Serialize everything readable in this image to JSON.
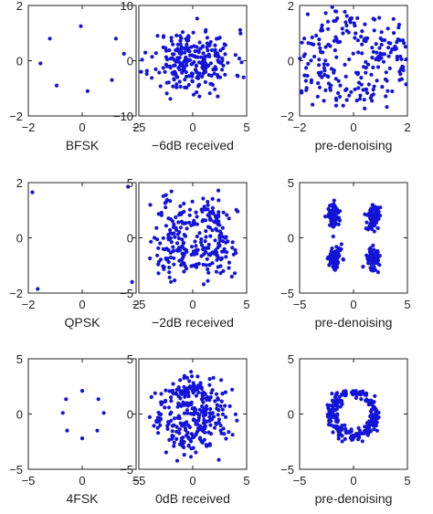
{
  "chart_data": [
    {
      "type": "scatter",
      "label": "BFSK",
      "xlim": [
        -2,
        2
      ],
      "ylim": [
        -2,
        2
      ],
      "xticks": [
        "-2",
        "0",
        "2"
      ],
      "yticks": [
        "-2",
        "0",
        "2"
      ],
      "points": [
        [
          -0.05,
          1.25
        ],
        [
          -1.2,
          0.8
        ],
        [
          1.25,
          0.8
        ],
        [
          -1.55,
          -0.1
        ],
        [
          1.55,
          0.25
        ],
        [
          -0.95,
          -0.9
        ],
        [
          1.1,
          -0.7
        ],
        [
          0.2,
          -1.1
        ]
      ]
    },
    {
      "type": "scatter",
      "label": "−6dB received",
      "xlim": [
        -5,
        5
      ],
      "ylim": [
        -10,
        10
      ],
      "xticks": [
        "-5",
        "0",
        "5"
      ],
      "yticks": [
        "-10",
        "0",
        "10"
      ],
      "n": 260,
      "seed": 11,
      "gen": "gauss",
      "sx": 1.9,
      "sy": 2.8
    },
    {
      "type": "scatter",
      "label": "pre-denoising",
      "xlim": [
        -2,
        2
      ],
      "ylim": [
        -2,
        2
      ],
      "xticks": [
        "-2",
        "0",
        "2"
      ],
      "yticks": [
        "-2",
        "0",
        "2"
      ],
      "n": 260,
      "seed": 23,
      "gen": "clusters",
      "spread": 0.55,
      "centers": [
        [
          -0.05,
          1.25
        ],
        [
          -1.2,
          0.8
        ],
        [
          1.25,
          0.8
        ],
        [
          -1.55,
          -0.1
        ],
        [
          1.55,
          0.25
        ],
        [
          -0.95,
          -0.9
        ],
        [
          1.1,
          -0.7
        ],
        [
          0.2,
          -1.1
        ]
      ]
    },
    {
      "type": "scatter",
      "label": "QPSK",
      "xlim": [
        -2,
        2
      ],
      "ylim": [
        -2,
        2
      ],
      "xticks": [
        "-2",
        "0",
        "2"
      ],
      "yticks": [
        "-2",
        "0",
        "2"
      ],
      "points": [
        [
          -1.85,
          1.65
        ],
        [
          1.7,
          1.85
        ],
        [
          -1.65,
          -1.85
        ],
        [
          1.85,
          -1.6
        ]
      ]
    },
    {
      "type": "scatter",
      "label": "−2dB received",
      "xlim": [
        -5,
        5
      ],
      "ylim": [
        -5,
        5
      ],
      "xticks": [
        "-5",
        "0",
        "5"
      ],
      "yticks": [
        "-5",
        "0",
        "5"
      ],
      "n": 270,
      "seed": 37,
      "gen": "clusters",
      "spread": 1.05,
      "centers": [
        [
          -1.8,
          1.7
        ],
        [
          1.8,
          1.7
        ],
        [
          -1.8,
          -1.7
        ],
        [
          1.8,
          -1.7
        ]
      ]
    },
    {
      "type": "scatter",
      "label": "pre-denoising",
      "xlim": [
        -5,
        5
      ],
      "ylim": [
        -5,
        5
      ],
      "xticks": [
        "-5",
        "0",
        "5"
      ],
      "yticks": [
        "-5",
        "0",
        "5"
      ],
      "n": 270,
      "seed": 41,
      "gen": "clusters",
      "spread": 0.32,
      "sxmul": 1.0,
      "symul": 1.9,
      "centers": [
        [
          -1.8,
          1.9
        ],
        [
          1.8,
          1.9
        ],
        [
          -1.8,
          -1.9
        ],
        [
          1.8,
          -1.9
        ]
      ]
    },
    {
      "type": "scatter",
      "label": "4FSK",
      "xlim": [
        -5,
        5
      ],
      "ylim": [
        -5,
        5
      ],
      "xticks": [
        "-5",
        "0",
        "5"
      ],
      "yticks": [
        "-5",
        "0",
        "5"
      ],
      "points": [
        [
          0,
          2.1
        ],
        [
          -1.5,
          1.35
        ],
        [
          1.5,
          1.35
        ],
        [
          -1.8,
          0.1
        ],
        [
          2.0,
          0.1
        ],
        [
          -1.4,
          -1.5
        ],
        [
          1.4,
          -1.5
        ],
        [
          0,
          -2.2
        ]
      ]
    },
    {
      "type": "scatter",
      "label": "0dB received",
      "xlim": [
        -5,
        5
      ],
      "ylim": [
        -5,
        5
      ],
      "xticks": [
        "-5",
        "0",
        "5"
      ],
      "yticks": [
        "-5",
        "0",
        "5"
      ],
      "n": 300,
      "seed": 53,
      "gen": "ring",
      "r": 2.2,
      "rspread": 0.95
    },
    {
      "type": "scatter",
      "label": "pre-denoising",
      "xlim": [
        -5,
        5
      ],
      "ylim": [
        -5,
        5
      ],
      "xticks": [
        "-5",
        "0",
        "5"
      ],
      "yticks": [
        "-5",
        "0",
        "5"
      ],
      "n": 240,
      "seed": 61,
      "gen": "ring",
      "r": 2.0,
      "rspread": 0.28
    }
  ]
}
